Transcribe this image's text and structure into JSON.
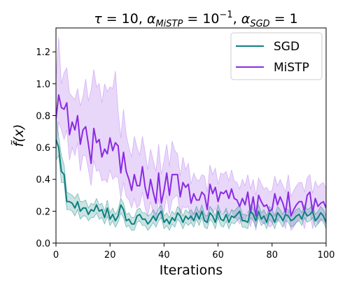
{
  "chart_data": {
    "type": "line",
    "title": "τ = 10, α_MiSTP = 10^-1, α_SGD = 1",
    "title_parts": {
      "tau": "τ",
      "tau_eq": " = 10, ",
      "alpha": "α",
      "mistp_sub": "MiSTP",
      "eq_ten": " = 10",
      "ten_exp": "−1",
      "comma": ", ",
      "alpha2": "α",
      "sgd_sub": "SGD",
      "eq_one": " = 1"
    },
    "xlabel": "Iterations",
    "ylabel": "f̃(x)",
    "xlim": [
      0,
      100
    ],
    "ylim": [
      0,
      1.35
    ],
    "xticks": [
      0,
      20,
      40,
      60,
      80,
      100
    ],
    "yticks": [
      0.0,
      0.2,
      0.4,
      0.6,
      0.8,
      1.0,
      1.2
    ],
    "xtick_labels": [
      "0",
      "20",
      "40",
      "60",
      "80",
      "100"
    ],
    "ytick_labels": [
      "0.0",
      "0.2",
      "0.4",
      "0.6",
      "0.8",
      "1.0",
      "1.2"
    ],
    "grid": false,
    "legend_position": "top-right",
    "x": [
      0,
      1,
      2,
      3,
      4,
      5,
      6,
      7,
      8,
      9,
      10,
      11,
      12,
      13,
      14,
      15,
      16,
      17,
      18,
      19,
      20,
      21,
      22,
      23,
      24,
      25,
      26,
      27,
      28,
      29,
      30,
      31,
      32,
      33,
      34,
      35,
      36,
      37,
      38,
      39,
      40,
      41,
      42,
      43,
      44,
      45,
      46,
      47,
      48,
      49,
      50,
      51,
      52,
      53,
      54,
      55,
      56,
      57,
      58,
      59,
      60,
      61,
      62,
      63,
      64,
      65,
      66,
      67,
      68,
      69,
      70,
      71,
      72,
      73,
      74,
      75,
      76,
      77,
      78,
      79,
      80,
      81,
      82,
      83,
      84,
      85,
      86,
      87,
      88,
      89,
      90,
      91,
      92,
      93,
      94,
      95,
      96,
      97,
      98,
      99,
      100
    ],
    "series": [
      {
        "name": "SGD",
        "color": "#0f7f7f",
        "fill_color": "#0f7f7f",
        "fill_opacity": 0.22,
        "mean": [
          0.65,
          0.6,
          0.45,
          0.43,
          0.26,
          0.26,
          0.25,
          0.22,
          0.26,
          0.2,
          0.22,
          0.22,
          0.18,
          0.21,
          0.2,
          0.24,
          0.2,
          0.21,
          0.16,
          0.22,
          0.15,
          0.18,
          0.14,
          0.17,
          0.24,
          0.21,
          0.14,
          0.15,
          0.12,
          0.12,
          0.17,
          0.18,
          0.15,
          0.15,
          0.12,
          0.14,
          0.17,
          0.14,
          0.18,
          0.2,
          0.13,
          0.15,
          0.12,
          0.16,
          0.14,
          0.19,
          0.17,
          0.13,
          0.17,
          0.15,
          0.17,
          0.14,
          0.19,
          0.15,
          0.2,
          0.14,
          0.13,
          0.19,
          0.17,
          0.13,
          0.2,
          0.15,
          0.14,
          0.18,
          0.13,
          0.17,
          0.16,
          0.18,
          0.2,
          0.14,
          0.14,
          0.13,
          0.2,
          0.18,
          0.14,
          0.2,
          0.15,
          0.17,
          0.13,
          0.19,
          0.17,
          0.13,
          0.19,
          0.17,
          0.14,
          0.18,
          0.17,
          0.14,
          0.15,
          0.17,
          0.18,
          0.15,
          0.2,
          0.17,
          0.18,
          0.2,
          0.14,
          0.16,
          0.19,
          0.17,
          0.13
        ],
        "upper": [
          0.8,
          0.67,
          0.55,
          0.49,
          0.32,
          0.31,
          0.3,
          0.28,
          0.31,
          0.26,
          0.26,
          0.27,
          0.22,
          0.25,
          0.24,
          0.28,
          0.24,
          0.25,
          0.2,
          0.27,
          0.19,
          0.22,
          0.18,
          0.21,
          0.28,
          0.25,
          0.18,
          0.19,
          0.16,
          0.16,
          0.21,
          0.22,
          0.19,
          0.19,
          0.17,
          0.18,
          0.21,
          0.18,
          0.22,
          0.24,
          0.17,
          0.19,
          0.16,
          0.2,
          0.18,
          0.23,
          0.21,
          0.17,
          0.21,
          0.19,
          0.21,
          0.18,
          0.23,
          0.19,
          0.24,
          0.18,
          0.17,
          0.23,
          0.21,
          0.17,
          0.24,
          0.19,
          0.18,
          0.22,
          0.17,
          0.21,
          0.2,
          0.22,
          0.24,
          0.18,
          0.18,
          0.17,
          0.24,
          0.22,
          0.18,
          0.24,
          0.19,
          0.21,
          0.17,
          0.23,
          0.21,
          0.17,
          0.23,
          0.21,
          0.18,
          0.22,
          0.21,
          0.18,
          0.19,
          0.21,
          0.22,
          0.19,
          0.24,
          0.21,
          0.22,
          0.24,
          0.18,
          0.2,
          0.23,
          0.21,
          0.17
        ],
        "lower": [
          0.52,
          0.55,
          0.38,
          0.38,
          0.21,
          0.21,
          0.2,
          0.17,
          0.21,
          0.15,
          0.17,
          0.17,
          0.14,
          0.16,
          0.16,
          0.19,
          0.15,
          0.16,
          0.12,
          0.17,
          0.11,
          0.14,
          0.1,
          0.13,
          0.19,
          0.16,
          0.1,
          0.11,
          0.08,
          0.08,
          0.13,
          0.14,
          0.11,
          0.11,
          0.08,
          0.1,
          0.13,
          0.1,
          0.14,
          0.16,
          0.09,
          0.11,
          0.08,
          0.12,
          0.1,
          0.15,
          0.13,
          0.09,
          0.13,
          0.11,
          0.13,
          0.1,
          0.15,
          0.11,
          0.16,
          0.1,
          0.09,
          0.15,
          0.13,
          0.09,
          0.16,
          0.11,
          0.1,
          0.14,
          0.09,
          0.13,
          0.12,
          0.14,
          0.16,
          0.1,
          0.1,
          0.09,
          0.16,
          0.14,
          0.1,
          0.16,
          0.11,
          0.13,
          0.09,
          0.15,
          0.13,
          0.09,
          0.15,
          0.13,
          0.1,
          0.14,
          0.13,
          0.1,
          0.11,
          0.13,
          0.14,
          0.11,
          0.16,
          0.13,
          0.14,
          0.16,
          0.1,
          0.12,
          0.15,
          0.13,
          0.09
        ]
      },
      {
        "name": "MiSTP",
        "color": "#8a2be2",
        "fill_color": "#b57cf0",
        "fill_opacity": 0.3,
        "mean": [
          0.78,
          0.93,
          0.85,
          0.84,
          0.88,
          0.68,
          0.76,
          0.71,
          0.8,
          0.62,
          0.71,
          0.73,
          0.62,
          0.5,
          0.72,
          0.63,
          0.65,
          0.54,
          0.59,
          0.56,
          0.66,
          0.58,
          0.63,
          0.61,
          0.44,
          0.57,
          0.45,
          0.4,
          0.33,
          0.43,
          0.36,
          0.36,
          0.48,
          0.35,
          0.28,
          0.4,
          0.32,
          0.25,
          0.44,
          0.25,
          0.33,
          0.44,
          0.3,
          0.43,
          0.43,
          0.43,
          0.29,
          0.38,
          0.35,
          0.37,
          0.25,
          0.31,
          0.27,
          0.27,
          0.32,
          0.3,
          0.21,
          0.37,
          0.31,
          0.35,
          0.26,
          0.32,
          0.31,
          0.33,
          0.28,
          0.34,
          0.28,
          0.27,
          0.23,
          0.28,
          0.24,
          0.32,
          0.19,
          0.29,
          0.17,
          0.3,
          0.26,
          0.23,
          0.24,
          0.2,
          0.21,
          0.31,
          0.24,
          0.29,
          0.25,
          0.19,
          0.32,
          0.17,
          0.21,
          0.24,
          0.26,
          0.26,
          0.2,
          0.3,
          0.32,
          0.19,
          0.28,
          0.23,
          0.25,
          0.26,
          0.22
        ],
        "upper": [
          1.03,
          1.29,
          1.0,
          1.07,
          1.1,
          0.94,
          0.92,
          0.9,
          0.97,
          0.86,
          0.92,
          1.03,
          0.89,
          0.96,
          1.09,
          0.98,
          1.0,
          0.88,
          1.0,
          0.95,
          0.98,
          0.97,
          1.08,
          0.83,
          0.66,
          0.84,
          0.68,
          0.6,
          0.54,
          0.67,
          0.6,
          0.55,
          0.67,
          0.57,
          0.46,
          0.59,
          0.52,
          0.45,
          0.62,
          0.43,
          0.52,
          0.62,
          0.48,
          0.64,
          0.58,
          0.56,
          0.42,
          0.54,
          0.46,
          0.5,
          0.37,
          0.44,
          0.4,
          0.39,
          0.43,
          0.42,
          0.32,
          0.49,
          0.43,
          0.47,
          0.37,
          0.44,
          0.43,
          0.45,
          0.39,
          0.46,
          0.39,
          0.38,
          0.34,
          0.4,
          0.36,
          0.43,
          0.34,
          0.4,
          0.3,
          0.41,
          0.37,
          0.34,
          0.35,
          0.32,
          0.33,
          0.42,
          0.36,
          0.4,
          0.36,
          0.32,
          0.43,
          0.29,
          0.33,
          0.36,
          0.38,
          0.38,
          0.32,
          0.41,
          0.43,
          0.31,
          0.39,
          0.35,
          0.37,
          0.38,
          0.34
        ],
        "lower": [
          0.58,
          0.76,
          0.71,
          0.65,
          0.71,
          0.52,
          0.6,
          0.55,
          0.63,
          0.45,
          0.55,
          0.55,
          0.46,
          0.36,
          0.52,
          0.45,
          0.46,
          0.39,
          0.4,
          0.38,
          0.46,
          0.4,
          0.42,
          0.41,
          0.28,
          0.38,
          0.29,
          0.27,
          0.22,
          0.28,
          0.22,
          0.24,
          0.32,
          0.22,
          0.17,
          0.26,
          0.19,
          0.15,
          0.28,
          0.15,
          0.2,
          0.3,
          0.18,
          0.27,
          0.29,
          0.3,
          0.18,
          0.23,
          0.22,
          0.23,
          0.14,
          0.19,
          0.16,
          0.16,
          0.2,
          0.18,
          0.12,
          0.23,
          0.19,
          0.22,
          0.15,
          0.2,
          0.19,
          0.2,
          0.16,
          0.21,
          0.16,
          0.15,
          0.12,
          0.16,
          0.13,
          0.2,
          0.1,
          0.17,
          0.08,
          0.18,
          0.14,
          0.12,
          0.13,
          0.1,
          0.11,
          0.19,
          0.13,
          0.17,
          0.14,
          0.09,
          0.2,
          0.08,
          0.1,
          0.13,
          0.15,
          0.15,
          0.09,
          0.18,
          0.2,
          0.09,
          0.16,
          0.12,
          0.14,
          0.15,
          0.11
        ]
      }
    ]
  }
}
